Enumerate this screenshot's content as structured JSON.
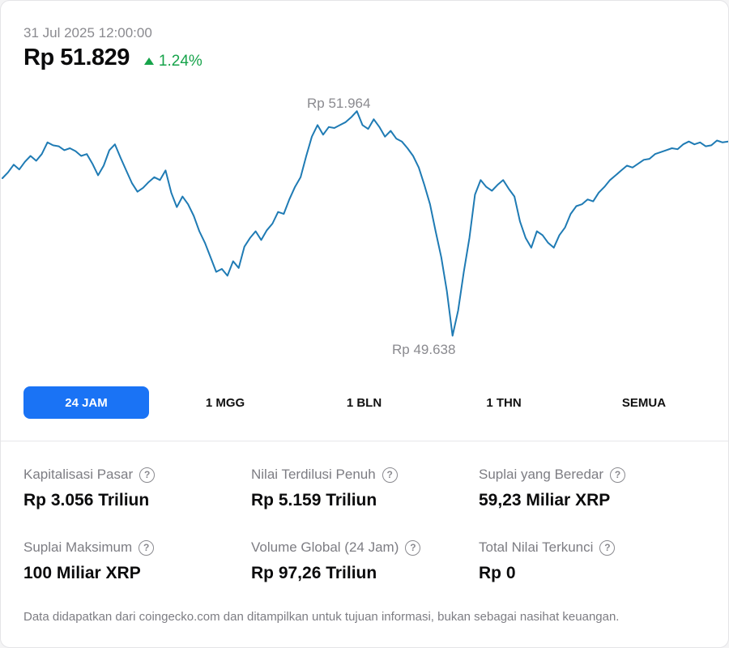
{
  "header": {
    "timestamp": "31 Jul 2025 12:00:00",
    "price": "Rp 51.829",
    "change": "1.24%",
    "change_direction": "up",
    "accent_up_color": "#16a34a"
  },
  "chart": {
    "high_label": "Rp 51.964",
    "low_label": "Rp 49.638",
    "line_color": "#1f7bb4"
  },
  "chart_data": {
    "type": "line",
    "title": "",
    "xlabel": "",
    "ylabel": "",
    "ylim": [
      49500,
      52100
    ],
    "grid": false,
    "series": [
      {
        "values": [
          51270,
          51330,
          51410,
          51360,
          51440,
          51500,
          51450,
          51520,
          51640,
          51610,
          51600,
          51560,
          51580,
          51550,
          51500,
          51520,
          51420,
          51300,
          51400,
          51560,
          51620,
          51480,
          51350,
          51220,
          51130,
          51170,
          51230,
          51280,
          51250,
          51350,
          51120,
          50970,
          51080,
          51000,
          50880,
          50720,
          50600,
          50450,
          50300,
          50330,
          50260,
          50410,
          50340,
          50560,
          50650,
          50720,
          50630,
          50730,
          50800,
          50920,
          50900,
          51050,
          51180,
          51280,
          51500,
          51700,
          51820,
          51720,
          51800,
          51790,
          51820,
          51850,
          51900,
          51964,
          51820,
          51780,
          51880,
          51800,
          51700,
          51760,
          51680,
          51650,
          51580,
          51500,
          51380,
          51200,
          51000,
          50720,
          50450,
          50100,
          49638,
          49900,
          50300,
          50650,
          51100,
          51250,
          51180,
          51140,
          51200,
          51250,
          51160,
          51080,
          50820,
          50650,
          50550,
          50720,
          50680,
          50600,
          50550,
          50680,
          50760,
          50900,
          50980,
          51000,
          51050,
          51030,
          51120,
          51180,
          51250,
          51300,
          51350,
          51400,
          51380,
          51420,
          51460,
          51470,
          51520,
          51540,
          51560,
          51580,
          51570,
          51620,
          51650,
          51620,
          51640,
          51600,
          51610,
          51660,
          51640,
          51650
        ]
      }
    ]
  },
  "tabs": [
    {
      "label": "24 JAM",
      "active": true
    },
    {
      "label": "1 MGG",
      "active": false
    },
    {
      "label": "1 BLN",
      "active": false
    },
    {
      "label": "1 THN",
      "active": false
    },
    {
      "label": "SEMUA",
      "active": false
    }
  ],
  "stats": [
    {
      "label": "Kapitalisasi Pasar",
      "value": "Rp 3.056 Triliun",
      "icon": "help-circle-icon"
    },
    {
      "label": "Nilai Terdilusi Penuh",
      "value": "Rp 5.159 Triliun",
      "icon": "help-circle-icon"
    },
    {
      "label": "Suplai yang Beredar",
      "value": "59,23 Miliar XRP",
      "icon": "help-circle-icon"
    },
    {
      "label": "Suplai Maksimum",
      "value": "100 Miliar XRP",
      "icon": "help-circle-icon"
    },
    {
      "label": "Volume Global (24 Jam)",
      "value": "Rp 97,26 Triliun",
      "icon": "help-circle-icon"
    },
    {
      "label": "Total Nilai Terkunci",
      "value": "Rp 0",
      "icon": "help-circle-icon"
    }
  ],
  "help_glyph": "?",
  "footer": {
    "note": "Data didapatkan dari coingecko.com dan ditampilkan untuk tujuan informasi, bukan sebagai nasihat keuangan."
  }
}
